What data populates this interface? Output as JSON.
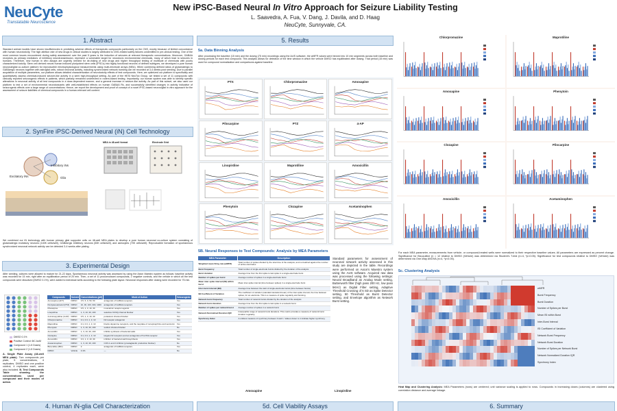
{
  "logo": {
    "name": "NeuCyte",
    "tagline": "Translatable Neuroscience"
  },
  "title": {
    "pre": "New iPSC-Based Neural ",
    "italic": "In Vitro",
    "post": " Approach for Seizure Liability Testing"
  },
  "authors": "L. Saavedra, A. Fua, V. Dang, J. Davila, and D. Haag",
  "affiliation": "NeuCyte, Sunnyvale, CA.",
  "sections": {
    "s1": "1. Abstract",
    "s2": "2. SynFire iPSC-Derived Neural (iN) Cell Technology",
    "s3": "3. Experimental Design",
    "s4": "4. Human iN-glia Cell Characterization",
    "s5": "5. Results",
    "s6": "6. Summary"
  },
  "subsections": {
    "a": "5a. Data Binning Analysis",
    "b": "5B. Neural Responses to Test Compounds: Analysis by MEA Parameters",
    "c": "5c. Clustering Analysis",
    "d": "5d. Cell Viability Assays"
  },
  "abstract": "Standard animal models have shown insufficiencies in predicting adverse effects of therapeutic compounds particularly on the CNS, mostly because of limited concordance with human neurotoxicity. The high attrition rate of new drugs in clinical studies is largely attributed to CNS-related safety failures unidentified in pre-clinical testing. One of the most common issues encountered during safety assessment over the past 5 years is the induction of seizures at relevant therapeutic concentrations. Moreover, GABAA receptors as primary mediators of inhibitory neurotransmission, represent a vulnerable target for neurotoxic environmental chemicals, many of which lead to seizures in humans. Therefore, new human in vitro assays are urgently needed for de-risking of new drugs and higher throughput testing of multitude of chemicals with poorly characterized toxicity. Stem cell derived neural human induced pluripotent stem cells (iPSCs) into highly functional neurons of defined subtypes, we developed a pure human neuronal/glial co-culture platform for reproducible electrophysiological measurements using multi-electrode arrays (MEA). When combining defined ratios of glutamatergic to GABAergic neurons together with astroglial cells, robust neuronal activity, including synchronized network bursting can be recorded at 3-4 weeks post seeding. Due to parallel acquisition of multiple parameters, our platform allows detailed characterization of neurotoxicity effects of test compounds. Here, we optimized our platform to specifically and quantitatively assess chemical-induced seizure-like activity in a semi high-throughput setting. As part of the HESI NeuTox Group, we tested a set of 11 compounds with clinically reported seizurogenic effects in patients, which partially remained undetected in rodent-based testing. Importantly, our human system was able to identify specific alterations in neuronal activity of all test compounds in a dose-dependent manner, and a general increase in seizure-like activity. As part of this subset, we also used our platform to test a set of environmental neurotoxicants with well-established effects on human GABAA Rs, and successfully identified changes in activity indicative of seizurogenic effects over a large range of concentrations. Hence, we report the development and proof of concept of a novel iPSC-based neuron/glial in vitro approach for the assessment of seizure liabilities of chemical compounds in a human-relevant cell context.",
  "tech": {
    "labels": [
      "Inhibitory iNs",
      "Excitatory iNs",
      "Glia",
      "MEA in 48-well format",
      "Electrode Grid"
    ],
    "caption": "We combined our iN technology with human primary glial supporter cells on 48-well MEA plates to develop a pure human neuronal co-culture system consisting of glutamatergic excitatory neurons (140K cells/well), GABAergic inhibitory neurons (60K cells/well), and astrocytes (70K cells/well). Reproducible formation of spontaneous synchronized neuronal network activity can be detected 3-4 weeks after plating."
  },
  "design": {
    "intro": "After seeding, cultures were allowed to mature for 21-22 days. Spontaneous neuronal activity was assessed by using the Axion Maestro system as follows: baseline activity was recorded for 15 min, right after an equilibration period of 20 min. Then, a set of 11 proconvulsant compounds, 2 negative controls, and the vehicle in which all the test compounds were dissolved (DMSO 0.1%), were added to individual wells according to the following plate layout. Neuronal responses after dosing were recorded for 75 min.",
    "legend": [
      "DMSO 0.1%",
      "Positive Control: 6IC AuM",
      "Compound 1 (1-5 Doses)",
      "Compound 2 (1-5 Doses)"
    ],
    "plate_caption_a": "A. Single Plate Assay (48-well MEA plate).",
    "plate_caption_b": "Two compounds per plate, 5 concentrations, 4 replicates. DMSO and one positive control, 4 replicates each, were also included.",
    "plate_caption_c": "B. Test Compounds Table showing the concentrations used per compound and their modes of action.",
    "table_headers": [
      "Compounds",
      "Solvent",
      "Concentrations (µM)",
      "Mode of Action",
      "Seizurogenic"
    ],
    "table_rows": [
      [
        "Amoxapine (HFT)",
        "DMSO",
        "0.5, 5, 0, 50, 50",
        "antagonist of GABAA receptors",
        "Yes"
      ],
      [
        "Pentylenetetrazol (PTZ)",
        "DMSO",
        "10, 30, 100, 300, 1000",
        "antagonist of GABAA receptors",
        "Yes"
      ],
      [
        "Pilocarpine",
        "DMSO",
        "0.5, 1, 3, 10, 30",
        "muscarinic receptor agonist",
        "Yes"
      ],
      [
        "Linopirdine",
        "DMSO",
        "1, 3, 10, 30, 100",
        "selective KCNQ channel blocker",
        "Yes"
      ],
      [
        "4-Aminopyridine (4-AP)",
        "DMSO",
        "0.5, 1, 3, 10, 30",
        "potassium channel blocker",
        "Yes"
      ],
      [
        "Chlorpromazine",
        "DMSO",
        "0.1, 0.3, 1, 3, 10",
        "D2 receptor antagonist",
        "Yes"
      ],
      [
        "Maprotiline",
        "DMSO",
        "0.1, 0.3, 1, 3, 10",
        "blocks dopamine receptors, and the reuptake of norepinephrine and serotonin",
        "Yes"
      ],
      [
        "Phenytoin",
        "DMSO",
        "1, 3, 10, 30, 100",
        "sodium channel blocker",
        "No"
      ],
      [
        "Amoxicillin",
        "DMSO",
        "1, 3, 10, 30, 100",
        "inhibits synthesis of bacterial walls",
        "Yes"
      ],
      [
        "Clozapine",
        "DMSO",
        "0.1, 0.3, 1, 3, 10",
        "targets D2 receptors and an antagonist of 5-HT2A receptor",
        "Yes"
      ],
      [
        "Amoxicillin",
        "DMSO",
        "0.3, 1, 3, 10, 30",
        "inhibitor of bacterial wall biosynthesis",
        "Yes"
      ],
      [
        "Acetaminophen",
        "DMSO",
        "1, 3, 10, 30, 100",
        "COX-1 and 2 inhibitor (prostaglandin production blocker)",
        "No"
      ],
      [
        "Bicuculline (BIC)",
        "DMSO",
        "2",
        "antagonist of GABAA receptors",
        "Yes"
      ],
      [
        "DMSO",
        "Vehicle",
        "0.1%",
        "---",
        "No"
      ]
    ]
  },
  "binning": {
    "text": "After processing the baseline (15 min) and the dosing (75 min) recordings using the AxIS software, the wMFR values were binned into 10 min segments across both baseline and dosing periods for each test compound. This analysis allows for detection of the time window in which the vehicle DMSO has equilibrated after dosing. That period (15 min) was used for compound normalization and comparisons against baseline.",
    "charts": [
      "PTX",
      "Chlorpromazine",
      "Amoxapine",
      "Pilocarpine",
      "PTZ",
      "4-AP",
      "Linopirdine",
      "Maprotiline",
      "Amoxicillin",
      "Phenytoin",
      "Clozapine",
      "Acetaminophen"
    ],
    "ylabel": "wMFR (Hz)",
    "xlabel": "Time (min)"
  },
  "mea_params": {
    "headers": [
      "MEA Parameter",
      "Description"
    ],
    "rows": [
      [
        "Weighted mean firing rate (wMFR)",
        "Total number of spikes divided by the total time of the analysis, and normalized against the number of active electrodes"
      ],
      [
        "Burst frequency",
        "Total number of single-electrode bursts divided by the duration of the analysis"
      ],
      [
        "Burst duration",
        "Average time from the first spike to last spike in a single-electrode burst"
      ],
      [
        "Number of spikes per burst",
        "Average number of spikes in a single-electrode burst"
      ],
      [
        "Mean inter-spike interval (ISI) within burst",
        "Mean inter-spike interval (time between spikes) in a single-electrode burst"
      ],
      [
        "Inter-burst interval (IBI)",
        "Average time between the start of single-electrode bursts (time between bursts)"
      ],
      [
        "IBI Coefficient of Variation",
        "The coefficient of variation (standard deviation/mean) of the inter-spike interval, the time between spikes, for an electrode. This is a measure of spike regularity and bursting"
      ],
      [
        "Network burst frequency",
        "Total number of network bursts divided by the duration of the analysis"
      ],
      [
        "Network burst duration",
        "Average time from the first spike to last spike in a network burst"
      ],
      [
        "Number of spikes per network burst",
        "Average number of spikes in a network burst"
      ],
      [
        "Network Normalized Duration IQR",
        "Interquartile range of network burst durations. This metric provides a measure of network burst duration regularity."
      ],
      [
        "Synchrony Index",
        "A unitless measure of synchrony between 0 and 1. Values closer to 1 indicate higher synchrony."
      ]
    ],
    "side_text": "Standard parameters for assessment of neuronal network activity assessed in this study are depicted in the table. Recordings were performed on Axion's Maestro system using the AxIS software. Acquired raw data was processed using the following settings: Neural Broadband as Analog Mode setting, Butterworth filter (high pass 200 Hz, low pass 5KHz) as Digital Filter setting, Adaptive Threshold Crossing of 6 SD as Spike Detector setting, 50 Threshold as Burst Detector setting, and Envelope algorithm as Network Burst setting."
  },
  "right_charts": {
    "titles": [
      "Chlorpromazine",
      "Maprotiline",
      "Amoxapine",
      "Phenytoin",
      "Clozapine",
      "Pilocarpine",
      "Amoxicillin",
      "Acetaminophen"
    ],
    "caption": "For each MEA parameter, measurements from vehicle- or compound-treated wells were normalized to their respective baseline values. All parameters are expressed as percent change. Significance for Bicuculline (n = 12 relative to DMSO (Vehicle) was determined via Student's T-test (n=4, *p<0.05). Significance for test compounds relative to DMSO (Vehicle) was determined via One-Way ANOVA (n=4, *p<0.05)."
  },
  "clustering": {
    "rows": [
      "wMFR",
      "Burst Frequency",
      "Burst Duration",
      "Number of Spikes per Burst",
      "Mean ISI within Burst",
      "Inter-Burst Interval",
      "ISI Coefficient of Variation",
      "Network Burst Frequency",
      "Network Burst Duration",
      "Number of Spikes per Network Burst",
      "Network Normalized Duration IQR",
      "Synchrony Index"
    ],
    "caption_bold": "Heat Map and Clustering Analysis:",
    "caption": " MEA Parameters (rows) are centered; unit variance scaling is applied to rows. Compounds in increasing doses (columns) are clustered using correlation distance and average linkage.",
    "colors": {
      "low": "#3b6fb6",
      "mid": "#f4f6fa",
      "high": "#d03a2e"
    }
  },
  "viability": {
    "titles": [
      "Amoxapine",
      "Linopirdine"
    ]
  },
  "colors": {
    "accent": "#1f5fa8",
    "header_bg": "#d3e3f3",
    "bar_red": "#c0392b",
    "bar_blue": "#3569b8"
  }
}
